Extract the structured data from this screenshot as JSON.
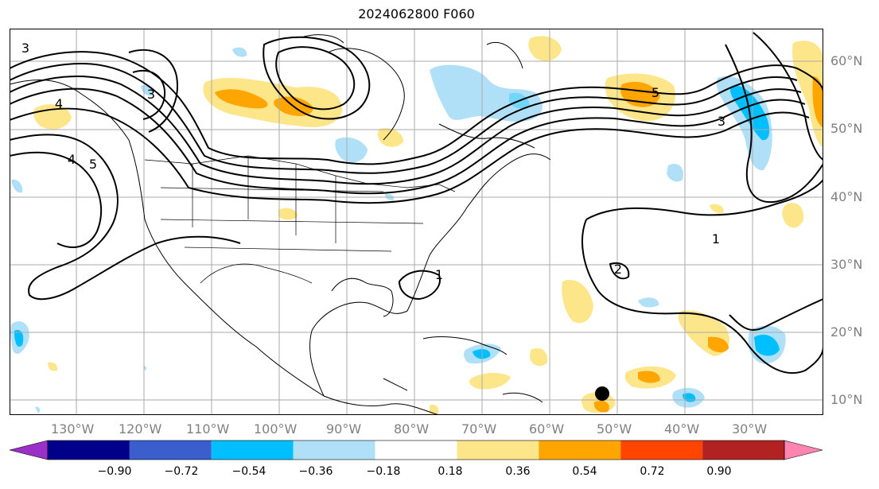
{
  "title": "2024062800 F060",
  "map": {
    "lon_labels": [
      "130°W",
      "120°W",
      "110°W",
      "100°W",
      "90°W",
      "80°W",
      "70°W",
      "60°W",
      "50°W",
      "40°W",
      "30°W"
    ],
    "lat_labels": [
      "60°N",
      "50°N",
      "40°N",
      "30°N",
      "20°N",
      "10°N"
    ],
    "contour_labels": [
      "3",
      "3",
      "4",
      "5",
      "4",
      "5",
      "3",
      "1",
      "2",
      "1"
    ],
    "storm_marker": {
      "lon": -50,
      "lat": 11
    }
  },
  "colorbar": {
    "ticks": [
      "−0.90",
      "−0.72",
      "−0.54",
      "−0.36",
      "−0.18",
      "0.18",
      "0.36",
      "0.54",
      "0.72",
      "0.90"
    ],
    "colors": [
      "#9b30c8",
      "#00008b",
      "#3a5fcd",
      "#00bfff",
      "#b0e0f8",
      "#ffffff",
      "#fde68a",
      "#ffa500",
      "#ff4500",
      "#b22222",
      "#ff85b0"
    ]
  }
}
